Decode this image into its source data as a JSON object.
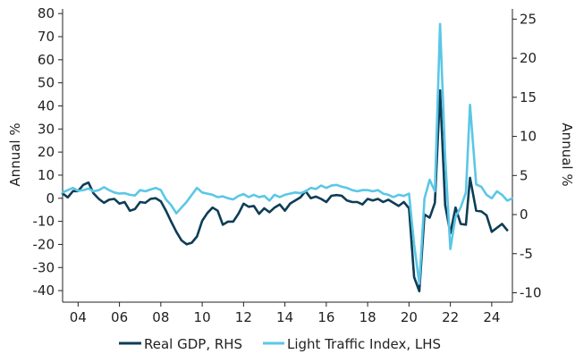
{
  "chart_data": {
    "type": "line",
    "title": "",
    "x_tick_labels": [
      "04",
      "06",
      "08",
      "10",
      "12",
      "14",
      "16",
      "18",
      "20",
      "22",
      "24"
    ],
    "x_tick_years": [
      2004,
      2006,
      2008,
      2010,
      2012,
      2014,
      2016,
      2018,
      2020,
      2022,
      2024
    ],
    "xlim": [
      2003.25,
      2025.0
    ],
    "y_left": {
      "label": "Annual %",
      "ylim": [
        -45,
        82
      ],
      "ticks": [
        -40,
        -30,
        -20,
        -10,
        0,
        10,
        20,
        30,
        40,
        50,
        60,
        70,
        80
      ]
    },
    "y_right": {
      "label": "Annual %",
      "ylim": [
        -11.2,
        26.3
      ],
      "ticks": [
        -10,
        -5,
        0,
        5,
        10,
        15,
        20,
        25
      ]
    },
    "grid": false,
    "legend_position": "bottom",
    "series": [
      {
        "name": "Real GDP, RHS",
        "axis": "right",
        "color": "#0d3d56",
        "points": [
          [
            2003.25,
            2.7
          ],
          [
            2003.5,
            2.2
          ],
          [
            2003.75,
            3.0
          ],
          [
            2004.0,
            3.0
          ],
          [
            2004.25,
            3.8
          ],
          [
            2004.5,
            4.1
          ],
          [
            2004.75,
            2.7
          ],
          [
            2005.0,
            2.0
          ],
          [
            2005.25,
            1.5
          ],
          [
            2005.5,
            1.9
          ],
          [
            2005.75,
            2.0
          ],
          [
            2006.0,
            1.4
          ],
          [
            2006.25,
            1.6
          ],
          [
            2006.5,
            0.5
          ],
          [
            2006.75,
            0.7
          ],
          [
            2007.0,
            1.6
          ],
          [
            2007.25,
            1.5
          ],
          [
            2007.5,
            2.0
          ],
          [
            2007.75,
            2.1
          ],
          [
            2008.0,
            1.7
          ],
          [
            2008.25,
            0.5
          ],
          [
            2008.5,
            -0.9
          ],
          [
            2008.75,
            -2.2
          ],
          [
            2009.0,
            -3.3
          ],
          [
            2009.25,
            -3.8
          ],
          [
            2009.5,
            -3.6
          ],
          [
            2009.75,
            -2.8
          ],
          [
            2010.0,
            -0.8
          ],
          [
            2010.25,
            0.2
          ],
          [
            2010.5,
            0.9
          ],
          [
            2010.75,
            0.5
          ],
          [
            2011.0,
            -1.3
          ],
          [
            2011.25,
            -0.9
          ],
          [
            2011.5,
            -0.9
          ],
          [
            2011.75,
            0.1
          ],
          [
            2012.0,
            1.4
          ],
          [
            2012.25,
            1.0
          ],
          [
            2012.5,
            1.1
          ],
          [
            2012.75,
            0.1
          ],
          [
            2013.0,
            0.8
          ],
          [
            2013.25,
            0.3
          ],
          [
            2013.5,
            0.9
          ],
          [
            2013.75,
            1.3
          ],
          [
            2014.0,
            0.5
          ],
          [
            2014.25,
            1.4
          ],
          [
            2014.5,
            1.8
          ],
          [
            2014.75,
            2.2
          ],
          [
            2015.0,
            3.0
          ],
          [
            2015.25,
            2.1
          ],
          [
            2015.5,
            2.3
          ],
          [
            2015.75,
            2.0
          ],
          [
            2016.0,
            1.6
          ],
          [
            2016.25,
            2.4
          ],
          [
            2016.5,
            2.5
          ],
          [
            2016.75,
            2.4
          ],
          [
            2017.0,
            1.8
          ],
          [
            2017.25,
            1.6
          ],
          [
            2017.5,
            1.6
          ],
          [
            2017.75,
            1.3
          ],
          [
            2018.0,
            2.0
          ],
          [
            2018.25,
            1.8
          ],
          [
            2018.5,
            2.0
          ],
          [
            2018.75,
            1.6
          ],
          [
            2019.0,
            1.9
          ],
          [
            2019.25,
            1.5
          ],
          [
            2019.5,
            1.1
          ],
          [
            2019.75,
            1.6
          ],
          [
            2020.0,
            0.8
          ],
          [
            2020.25,
            -8.0
          ],
          [
            2020.5,
            -9.8
          ],
          [
            2020.75,
            0.0
          ],
          [
            2021.0,
            -0.4
          ],
          [
            2021.25,
            1.5
          ],
          [
            2021.5,
            15.9
          ],
          [
            2021.75,
            1.2
          ],
          [
            2022.0,
            -2.4
          ],
          [
            2022.25,
            0.9
          ],
          [
            2022.5,
            -1.2
          ],
          [
            2022.75,
            -1.3
          ],
          [
            2022.95,
            4.7
          ],
          [
            2023.25,
            0.5
          ],
          [
            2023.5,
            0.4
          ],
          [
            2023.75,
            -0.1
          ],
          [
            2024.0,
            -2.2
          ],
          [
            2024.25,
            -1.7
          ],
          [
            2024.5,
            -1.2
          ],
          [
            2024.75,
            -2.0
          ]
        ]
      },
      {
        "name": "Light Traffic Index, LHS",
        "axis": "left",
        "color": "#5bc7e6",
        "points": [
          [
            2003.25,
            2.5
          ],
          [
            2003.5,
            3.5
          ],
          [
            2003.75,
            4.5
          ],
          [
            2004.0,
            3.2
          ],
          [
            2004.25,
            3.5
          ],
          [
            2004.5,
            4.2
          ],
          [
            2004.75,
            3.0
          ],
          [
            2005.0,
            3.5
          ],
          [
            2005.25,
            4.8
          ],
          [
            2005.5,
            3.5
          ],
          [
            2005.75,
            2.5
          ],
          [
            2006.0,
            2.0
          ],
          [
            2006.25,
            2.2
          ],
          [
            2006.5,
            1.5
          ],
          [
            2006.75,
            1.2
          ],
          [
            2007.0,
            3.5
          ],
          [
            2007.25,
            3.0
          ],
          [
            2007.5,
            3.8
          ],
          [
            2007.75,
            4.5
          ],
          [
            2008.0,
            3.5
          ],
          [
            2008.25,
            -0.5
          ],
          [
            2008.5,
            -3.0
          ],
          [
            2008.75,
            -6.5
          ],
          [
            2009.0,
            -4.0
          ],
          [
            2009.25,
            -1.5
          ],
          [
            2009.5,
            1.5
          ],
          [
            2009.75,
            4.5
          ],
          [
            2010.0,
            2.5
          ],
          [
            2010.25,
            2.0
          ],
          [
            2010.5,
            1.5
          ],
          [
            2010.75,
            0.5
          ],
          [
            2011.0,
            0.8
          ],
          [
            2011.25,
            0.0
          ],
          [
            2011.5,
            -0.5
          ],
          [
            2011.75,
            1.0
          ],
          [
            2012.0,
            1.8
          ],
          [
            2012.25,
            0.5
          ],
          [
            2012.5,
            1.5
          ],
          [
            2012.75,
            0.5
          ],
          [
            2013.0,
            1.0
          ],
          [
            2013.25,
            -1.0
          ],
          [
            2013.5,
            1.5
          ],
          [
            2013.75,
            0.5
          ],
          [
            2014.0,
            1.5
          ],
          [
            2014.25,
            2.0
          ],
          [
            2014.5,
            2.5
          ],
          [
            2014.75,
            2.2
          ],
          [
            2015.0,
            3.0
          ],
          [
            2015.25,
            4.5
          ],
          [
            2015.5,
            4.0
          ],
          [
            2015.75,
            5.5
          ],
          [
            2016.0,
            4.5
          ],
          [
            2016.25,
            5.5
          ],
          [
            2016.5,
            5.8
          ],
          [
            2016.75,
            5.0
          ],
          [
            2017.0,
            4.5
          ],
          [
            2017.25,
            3.5
          ],
          [
            2017.5,
            3.0
          ],
          [
            2017.75,
            3.5
          ],
          [
            2018.0,
            3.5
          ],
          [
            2018.25,
            3.0
          ],
          [
            2018.5,
            3.5
          ],
          [
            2018.75,
            2.0
          ],
          [
            2019.0,
            1.5
          ],
          [
            2019.25,
            0.5
          ],
          [
            2019.5,
            1.5
          ],
          [
            2019.75,
            1.0
          ],
          [
            2020.0,
            2.0
          ],
          [
            2020.25,
            -20.0
          ],
          [
            2020.5,
            -37.0
          ],
          [
            2020.75,
            0.0
          ],
          [
            2021.0,
            8.0
          ],
          [
            2021.25,
            3.0
          ],
          [
            2021.5,
            75.5
          ],
          [
            2021.75,
            18.0
          ],
          [
            2022.0,
            -22.0
          ],
          [
            2022.25,
            -8.0
          ],
          [
            2022.5,
            -4.0
          ],
          [
            2022.75,
            2.5
          ],
          [
            2022.95,
            40.5
          ],
          [
            2023.25,
            6.0
          ],
          [
            2023.5,
            5.0
          ],
          [
            2023.75,
            1.5
          ],
          [
            2024.0,
            0.0
          ],
          [
            2024.25,
            3.0
          ],
          [
            2024.5,
            1.5
          ],
          [
            2024.75,
            -1.0
          ],
          [
            2025.0,
            0.0
          ]
        ]
      }
    ]
  }
}
